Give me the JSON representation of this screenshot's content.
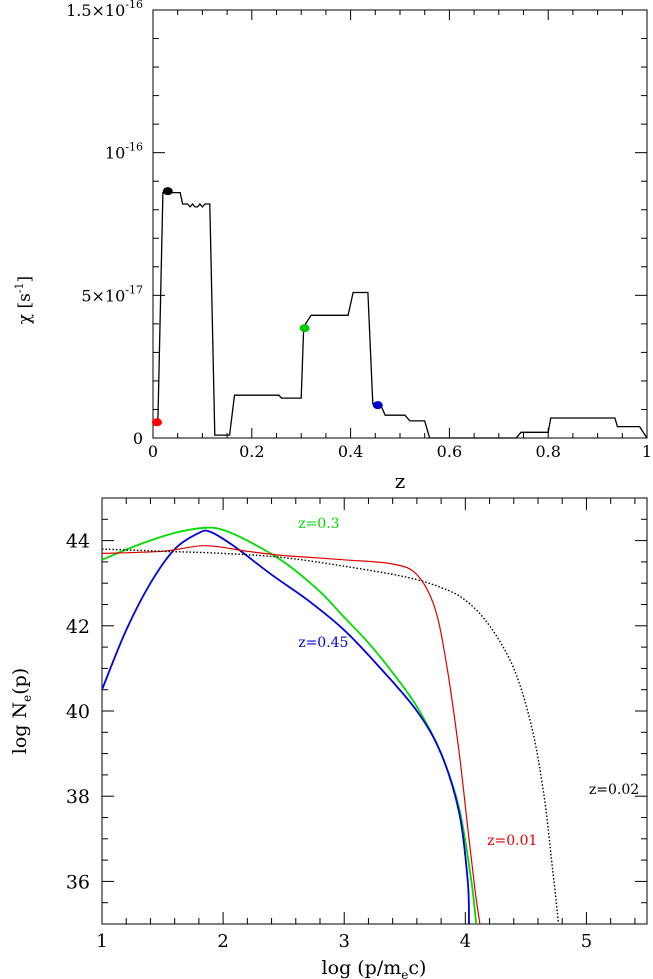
{
  "chart_data": [
    {
      "type": "line",
      "xlabel": "z",
      "ylabel": "χ  [s",
      "ylabel_sup": "-1",
      "ylabel_close": "]",
      "xlim": [
        0,
        1
      ],
      "ylim": [
        0,
        1.5e-16
      ],
      "x_ticks": [
        {
          "value": 0,
          "label": "0"
        },
        {
          "value": 0.2,
          "label": "0.2"
        },
        {
          "value": 0.4,
          "label": "0.4"
        },
        {
          "value": 0.6,
          "label": "0.6"
        },
        {
          "value": 0.8,
          "label": "0.8"
        },
        {
          "value": 1,
          "label": "1"
        }
      ],
      "y_ticks": [
        {
          "value": 0,
          "label": "0"
        },
        {
          "value": 5e-17,
          "mantissa": "5×10",
          "exp": "-17"
        },
        {
          "value": 1e-16,
          "mantissa": "10",
          "exp": "-16"
        },
        {
          "value": 1.5e-16,
          "mantissa": "1.5×10",
          "exp": "-16"
        }
      ],
      "series": [
        {
          "color": "#000000",
          "points": [
            [
              0.01,
              6e-18
            ],
            [
              0.02,
              8.6e-17
            ],
            [
              0.035,
              8.6e-17
            ],
            [
              0.055,
              8.6e-17
            ],
            [
              0.06,
              8.2e-17
            ],
            [
              0.07,
              8.2e-17
            ],
            [
              0.075,
              8.1e-17
            ],
            [
              0.08,
              8.2e-17
            ],
            [
              0.085,
              8.1e-17
            ],
            [
              0.09,
              8.1e-17
            ],
            [
              0.095,
              8.2e-17
            ],
            [
              0.1,
              8.1e-17
            ],
            [
              0.105,
              8.2e-17
            ],
            [
              0.115,
              8.2e-17
            ],
            [
              0.125,
              1e-18
            ],
            [
              0.155,
              1e-18
            ],
            [
              0.165,
              1.5e-17
            ],
            [
              0.255,
              1.5e-17
            ],
            [
              0.26,
              1.4e-17
            ],
            [
              0.3,
              1.4e-17
            ],
            [
              0.305,
              3.9e-17
            ],
            [
              0.32,
              4.3e-17
            ],
            [
              0.395,
              4.3e-17
            ],
            [
              0.405,
              5.1e-17
            ],
            [
              0.435,
              5.1e-17
            ],
            [
              0.445,
              1.2e-17
            ],
            [
              0.46,
              1.2e-17
            ],
            [
              0.47,
              8e-18
            ],
            [
              0.51,
              8e-18
            ],
            [
              0.52,
              6e-18
            ],
            [
              0.55,
              6e-18
            ],
            [
              0.56,
              0
            ],
            [
              0.735,
              0
            ],
            [
              0.745,
              2e-18
            ],
            [
              0.8,
              2e-18
            ],
            [
              0.805,
              7e-18
            ],
            [
              0.935,
              7e-18
            ],
            [
              0.94,
              4e-18
            ],
            [
              0.985,
              4e-18
            ],
            [
              1.0,
              0
            ]
          ]
        }
      ],
      "markers": [
        {
          "x": 0.008,
          "y": 5.5e-18,
          "color": "#ff0000"
        },
        {
          "x": 0.03,
          "y": 8.65e-17,
          "color": "#000000"
        },
        {
          "x": 0.307,
          "y": 3.85e-17,
          "color": "#00cc00"
        },
        {
          "x": 0.455,
          "y": 1.15e-17,
          "color": "#0000cc"
        }
      ]
    },
    {
      "type": "line",
      "xlabel": "log  (p/m",
      "xlabel_sub": "e",
      "xlabel_tail": "c)",
      "ylabel": "log N",
      "ylabel_sub": "e",
      "ylabel_tail": "(p)",
      "xlim": [
        1,
        5.5
      ],
      "ylim": [
        35,
        45
      ],
      "x_ticks": [
        {
          "value": 1,
          "label": "1"
        },
        {
          "value": 2,
          "label": "2"
        },
        {
          "value": 3,
          "label": "3"
        },
        {
          "value": 4,
          "label": "4"
        },
        {
          "value": 5,
          "label": "5"
        }
      ],
      "y_ticks": [
        {
          "value": 36,
          "label": "36"
        },
        {
          "value": 38,
          "label": "38"
        },
        {
          "value": 40,
          "label": "40"
        },
        {
          "value": 42,
          "label": "42"
        },
        {
          "value": 44,
          "label": "44"
        }
      ],
      "series": [
        {
          "label": "z=0.3",
          "color": "#00dd00",
          "label_at": [
            2.62,
            44.3
          ],
          "points": [
            [
              1.0,
              43.55
            ],
            [
              1.3,
              43.9
            ],
            [
              1.6,
              44.18
            ],
            [
              1.85,
              44.3
            ],
            [
              2.0,
              44.25
            ],
            [
              2.2,
              44.0
            ],
            [
              2.5,
              43.5
            ],
            [
              2.8,
              42.8
            ],
            [
              3.0,
              42.2
            ],
            [
              3.2,
              41.6
            ],
            [
              3.4,
              40.9
            ],
            [
              3.6,
              40.1
            ],
            [
              3.8,
              39.0
            ],
            [
              3.95,
              37.7
            ],
            [
              4.05,
              36.0
            ],
            [
              4.09,
              35.0
            ]
          ]
        },
        {
          "label": "z=0.45",
          "color": "#0000dd",
          "label_at": [
            2.62,
            41.5
          ],
          "points": [
            [
              1.0,
              40.5
            ],
            [
              1.2,
              41.9
            ],
            [
              1.4,
              43.0
            ],
            [
              1.6,
              43.8
            ],
            [
              1.8,
              44.18
            ],
            [
              1.9,
              44.2
            ],
            [
              2.1,
              43.85
            ],
            [
              2.4,
              43.2
            ],
            [
              2.7,
              42.6
            ],
            [
              3.0,
              41.9
            ],
            [
              3.3,
              41.0
            ],
            [
              3.6,
              40.0
            ],
            [
              3.8,
              39.0
            ],
            [
              3.95,
              37.6
            ],
            [
              4.02,
              36.0
            ],
            [
              4.03,
              35.0
            ]
          ]
        },
        {
          "label": "z=0.01",
          "color": "#dd0000",
          "label_at": [
            4.18,
            36.85
          ],
          "points": [
            [
              1.0,
              43.7
            ],
            [
              1.5,
              43.75
            ],
            [
              1.85,
              43.88
            ],
            [
              2.2,
              43.75
            ],
            [
              2.5,
              43.65
            ],
            [
              3.0,
              43.55
            ],
            [
              3.4,
              43.45
            ],
            [
              3.6,
              43.2
            ],
            [
              3.75,
              42.4
            ],
            [
              3.85,
              41.0
            ],
            [
              3.95,
              39.0
            ],
            [
              4.03,
              37.0
            ],
            [
              4.08,
              35.8
            ],
            [
              4.12,
              35.0
            ]
          ]
        },
        {
          "label": "z=0.02",
          "color": "#000000",
          "label_at": [
            5.02,
            38.05
          ],
          "points": [
            [
              1.0,
              43.8
            ],
            [
              1.5,
              43.75
            ],
            [
              2.0,
              43.7
            ],
            [
              2.5,
              43.6
            ],
            [
              3.0,
              43.4
            ],
            [
              3.5,
              43.15
            ],
            [
              3.8,
              42.9
            ],
            [
              4.0,
              42.6
            ],
            [
              4.2,
              42.0
            ],
            [
              4.4,
              41.0
            ],
            [
              4.55,
              39.6
            ],
            [
              4.65,
              38.0
            ],
            [
              4.72,
              36.3
            ],
            [
              4.77,
              35.0
            ]
          ]
        }
      ]
    }
  ]
}
